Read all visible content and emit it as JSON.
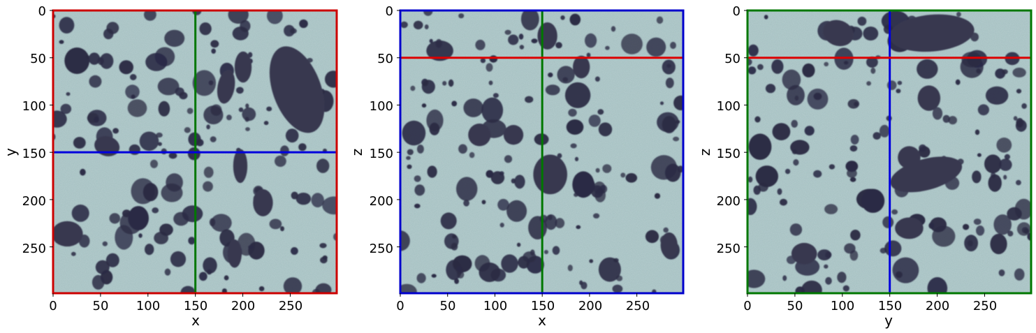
{
  "panels": [
    {
      "xlabel": "x",
      "ylabel": "y",
      "frame_color": "#cc0000",
      "vline": {
        "value": 150,
        "color": "#007700"
      },
      "hline": {
        "value": 150,
        "color": "#0000dd"
      },
      "xticks": [
        "0",
        "50",
        "100",
        "150",
        "200",
        "250"
      ],
      "yticks": [
        "0",
        "50",
        "100",
        "150",
        "200",
        "250"
      ]
    },
    {
      "xlabel": "x",
      "ylabel": "z",
      "frame_color": "#0000cc",
      "vline": {
        "value": 150,
        "color": "#007700"
      },
      "hline": {
        "value": 50,
        "color": "#dd0000"
      },
      "xticks": [
        "0",
        "50",
        "100",
        "150",
        "200",
        "250"
      ],
      "yticks": [
        "0",
        "50",
        "100",
        "150",
        "200",
        "250"
      ]
    },
    {
      "xlabel": "y",
      "ylabel": "z",
      "frame_color": "#007700",
      "vline": {
        "value": 150,
        "color": "#0000dd"
      },
      "hline": {
        "value": 50,
        "color": "#dd0000"
      },
      "xticks": [
        "0",
        "50",
        "100",
        "150",
        "200",
        "250"
      ],
      "yticks": [
        "0",
        "50",
        "100",
        "150",
        "200",
        "250"
      ]
    }
  ],
  "axis_range": [
    0,
    299
  ],
  "colors": {
    "background": "#a9c3c4",
    "pore": "#2a2a44"
  }
}
